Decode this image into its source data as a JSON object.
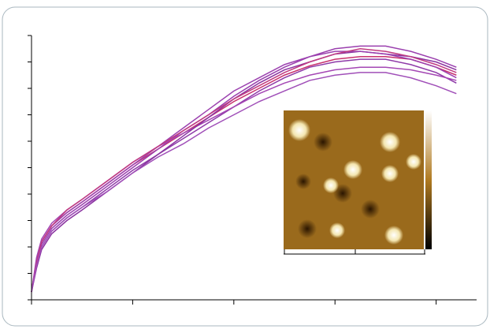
{
  "chart_data": {
    "type": "line",
    "x": [
      0,
      0.05,
      0.1,
      0.2,
      0.35,
      0.5,
      0.75,
      1,
      1.25,
      1.5,
      1.75,
      2,
      2.25,
      2.5,
      2.75,
      3,
      3.25,
      3.5,
      3.75,
      4,
      4.2
    ],
    "series": [
      {
        "color": "#c8326e",
        "values": [
          0.3,
          1.5,
          2.2,
          2.8,
          3.3,
          3.7,
          4.4,
          5.1,
          5.7,
          6.3,
          6.9,
          7.5,
          8.0,
          8.5,
          8.85,
          9.1,
          9.2,
          9.2,
          9.1,
          8.8,
          8.5
        ]
      },
      {
        "color": "#9a3fae",
        "values": [
          0.3,
          1.4,
          2.1,
          2.7,
          3.2,
          3.6,
          4.3,
          5.0,
          5.7,
          6.4,
          7.0,
          7.7,
          8.3,
          8.8,
          9.2,
          9.5,
          9.6,
          9.6,
          9.4,
          9.1,
          8.8
        ]
      },
      {
        "color": "#8e3aa8",
        "values": [
          0.3,
          1.3,
          2.0,
          2.6,
          3.1,
          3.5,
          4.2,
          4.9,
          5.5,
          6.1,
          6.7,
          7.3,
          7.9,
          8.4,
          8.8,
          9.0,
          9.1,
          9.1,
          8.9,
          8.6,
          8.2
        ]
      },
      {
        "color": "#a447b4",
        "values": [
          0.3,
          1.6,
          2.3,
          2.9,
          3.4,
          3.8,
          4.5,
          5.2,
          5.8,
          6.3,
          6.8,
          7.3,
          7.8,
          8.2,
          8.5,
          8.7,
          8.8,
          8.8,
          8.7,
          8.5,
          8.3
        ]
      },
      {
        "color": "#8a33a0",
        "values": [
          0.3,
          1.2,
          1.9,
          2.5,
          3.0,
          3.4,
          4.1,
          4.8,
          5.5,
          6.2,
          6.9,
          7.6,
          8.2,
          8.7,
          9.0,
          9.3,
          9.4,
          9.3,
          9.2,
          9.0,
          8.7
        ]
      },
      {
        "color": "#9c42b0",
        "values": [
          0.3,
          1.5,
          2.2,
          2.8,
          3.3,
          3.7,
          4.4,
          5.1,
          5.8,
          6.5,
          7.2,
          7.9,
          8.4,
          8.9,
          9.2,
          9.4,
          9.4,
          9.3,
          9.1,
          8.8,
          8.4
        ]
      },
      {
        "color": "#c03a80",
        "values": [
          0.3,
          1.4,
          2.2,
          2.8,
          3.4,
          3.8,
          4.5,
          5.2,
          5.8,
          6.4,
          7.0,
          7.6,
          8.1,
          8.6,
          9.0,
          9.3,
          9.5,
          9.4,
          9.2,
          8.9,
          8.6
        ]
      },
      {
        "color": "#a04fb8",
        "values": [
          0.3,
          1.3,
          2.0,
          2.6,
          3.1,
          3.5,
          4.1,
          4.8,
          5.4,
          5.9,
          6.5,
          7.0,
          7.5,
          7.9,
          8.3,
          8.5,
          8.6,
          8.6,
          8.4,
          8.1,
          7.8
        ]
      }
    ],
    "xlim": [
      0,
      4.4
    ],
    "xticks": [
      0,
      1,
      2,
      3,
      4
    ],
    "ylim": [
      0,
      10
    ],
    "yticks": [
      0,
      1,
      2,
      3,
      4,
      5,
      6,
      7,
      8,
      9,
      10
    ]
  }
}
